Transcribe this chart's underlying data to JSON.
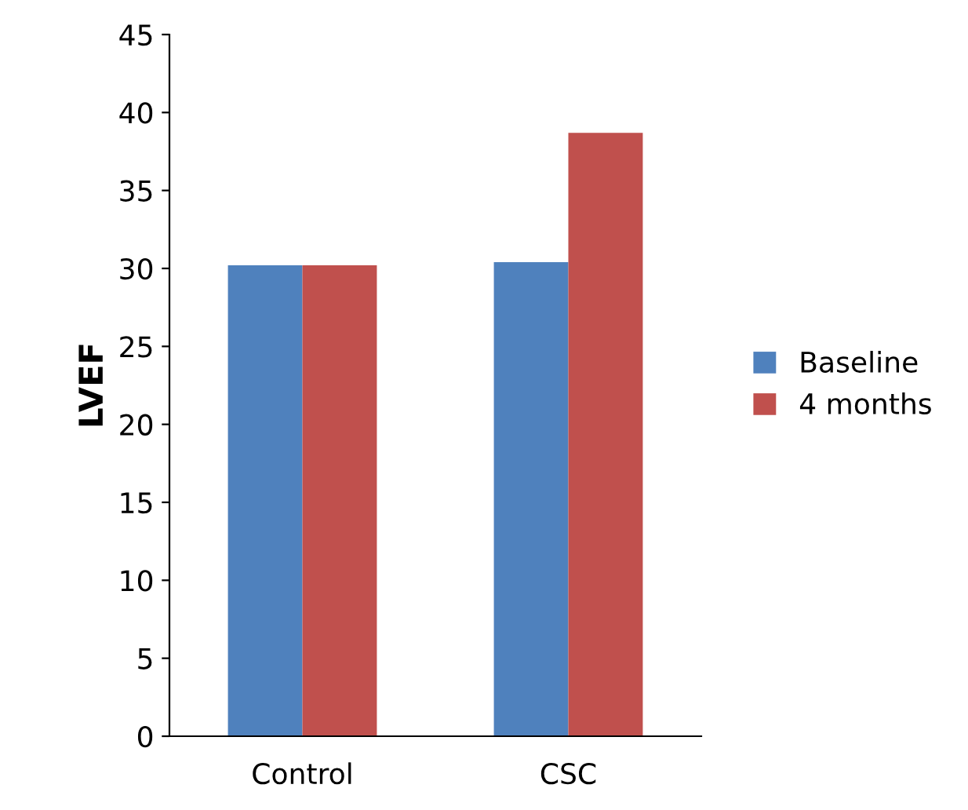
{
  "chart_data": {
    "type": "bar",
    "ylabel": "LVEF",
    "categories": [
      "Control",
      "CSC"
    ],
    "series": [
      {
        "name": "Baseline",
        "color": "#4f81bd",
        "values": [
          30.2,
          30.4
        ]
      },
      {
        "name": "4 months",
        "color": "#c0504d",
        "values": [
          30.2,
          38.7
        ]
      }
    ],
    "ylim": [
      0,
      45
    ],
    "yticks": [
      0,
      5,
      10,
      15,
      20,
      25,
      30,
      35,
      40,
      45
    ],
    "grid": false,
    "legend": "right"
  }
}
